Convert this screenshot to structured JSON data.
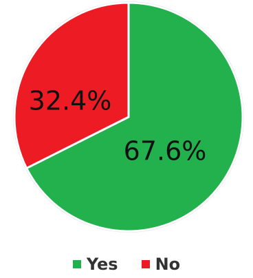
{
  "chart_data": {
    "type": "pie",
    "title": "",
    "slices": [
      {
        "label": "Yes",
        "value": 67.6,
        "display": "67.6%",
        "color": "#22b14c"
      },
      {
        "label": "No",
        "value": 32.4,
        "display": "32.4%",
        "color": "#ed1c24"
      }
    ],
    "legend": {
      "placement": "bottom",
      "entries": [
        "Yes",
        "No"
      ]
    },
    "start_angle": "12 o'clock",
    "direction": "clockwise",
    "slice_border_color": "#ffffff",
    "outer_edge_color": "#b8c4d6"
  }
}
